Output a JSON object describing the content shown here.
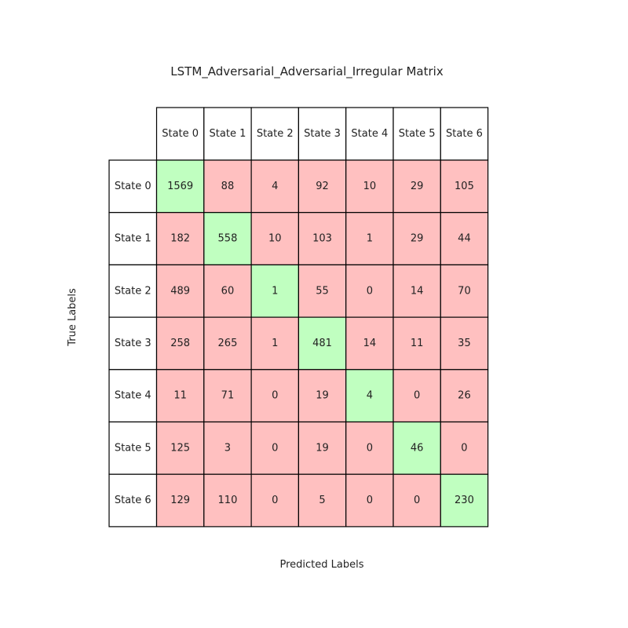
{
  "chart_data": {
    "type": "heatmap",
    "title": "LSTM_Adversarial_Adversarial_Irregular Matrix",
    "xlabel": "Predicted Labels",
    "ylabel": "True Labels",
    "columns": [
      "State 0",
      "State 1",
      "State 2",
      "State 3",
      "State 4",
      "State 5",
      "State 6"
    ],
    "rows": [
      "State 0",
      "State 1",
      "State 2",
      "State 3",
      "State 4",
      "State 5",
      "State 6"
    ],
    "values": [
      [
        1569,
        88,
        4,
        92,
        10,
        29,
        105
      ],
      [
        182,
        558,
        10,
        103,
        1,
        29,
        44
      ],
      [
        489,
        60,
        1,
        55,
        0,
        14,
        70
      ],
      [
        258,
        265,
        1,
        481,
        14,
        11,
        35
      ],
      [
        11,
        71,
        0,
        19,
        4,
        0,
        26
      ],
      [
        125,
        3,
        0,
        19,
        0,
        46,
        0
      ],
      [
        129,
        110,
        0,
        5,
        0,
        0,
        230
      ]
    ],
    "colors": {
      "diagonal": "#c0ffc0",
      "off_diagonal": "#ffc0c0",
      "header": "#ffffff",
      "border": "#000000"
    }
  }
}
